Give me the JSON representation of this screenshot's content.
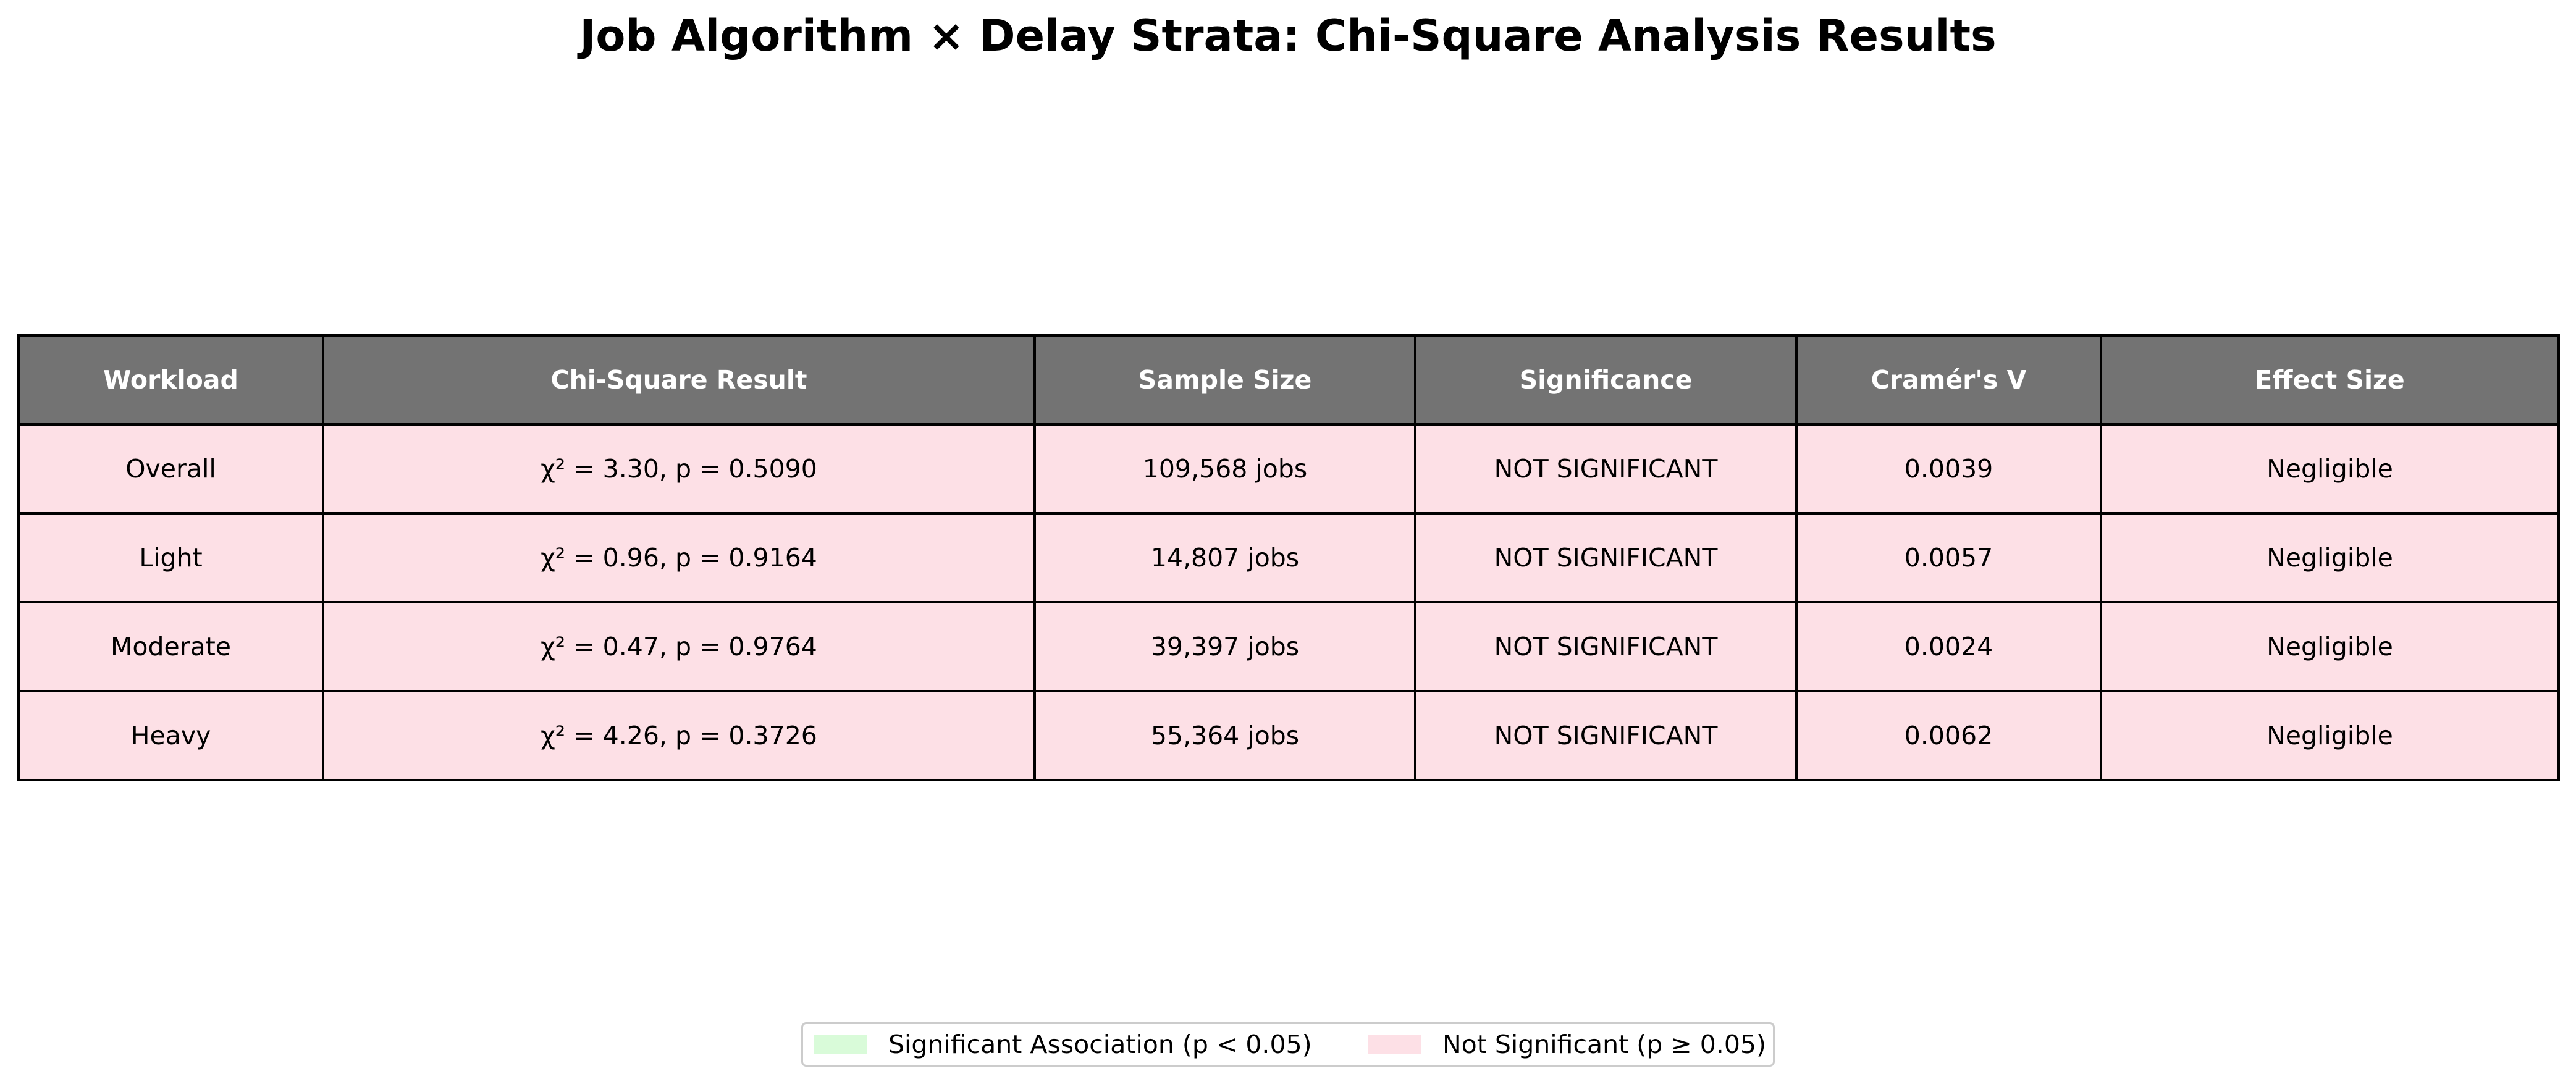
{
  "chart_data": {
    "type": "table",
    "title": "Job Algorithm × Delay Strata: Chi-Square Analysis Results",
    "columns": [
      "Workload",
      "Chi-Square Result",
      "Sample Size",
      "Significance",
      "Cramér's V",
      "Effect Size"
    ],
    "rows": [
      {
        "workload": "Overall",
        "chi_square_result": "χ² = 3.30, p = 0.5090",
        "chi_square": 3.3,
        "p_value": 0.509,
        "sample_size": "109,568 jobs",
        "jobs": 109568,
        "significance": "NOT SIGNIFICANT",
        "cramers_v": "0.0039",
        "effect_size": "Negligible"
      },
      {
        "workload": "Light",
        "chi_square_result": "χ² = 0.96, p = 0.9164",
        "chi_square": 0.96,
        "p_value": 0.9164,
        "sample_size": "14,807 jobs",
        "jobs": 14807,
        "significance": "NOT SIGNIFICANT",
        "cramers_v": "0.0057",
        "effect_size": "Negligible"
      },
      {
        "workload": "Moderate",
        "chi_square_result": "χ² = 0.47, p = 0.9764",
        "chi_square": 0.47,
        "p_value": 0.9764,
        "sample_size": "39,397 jobs",
        "jobs": 39397,
        "significance": "NOT SIGNIFICANT",
        "cramers_v": "0.0024",
        "effect_size": "Negligible"
      },
      {
        "workload": "Heavy",
        "chi_square_result": "χ² = 4.26, p = 0.3726",
        "chi_square": 4.26,
        "p_value": 0.3726,
        "sample_size": "55,364 jobs",
        "jobs": 55364,
        "significance": "NOT SIGNIFICANT",
        "cramers_v": "0.0062",
        "effect_size": "Negligible"
      }
    ],
    "legend": [
      {
        "label": "Significant Association (p < 0.05)",
        "color": "#d9fbd9"
      },
      {
        "label": "Not Significant (p ≥ 0.05)",
        "color": "#fde0e6"
      }
    ],
    "legend_placement": "bottom-center"
  },
  "colors": {
    "header_bg": "#737373",
    "header_text": "#ffffff",
    "significant_row_bg": "#d9fbd9",
    "not_significant_row_bg": "#fde0e6",
    "grid_line": "#000000"
  }
}
